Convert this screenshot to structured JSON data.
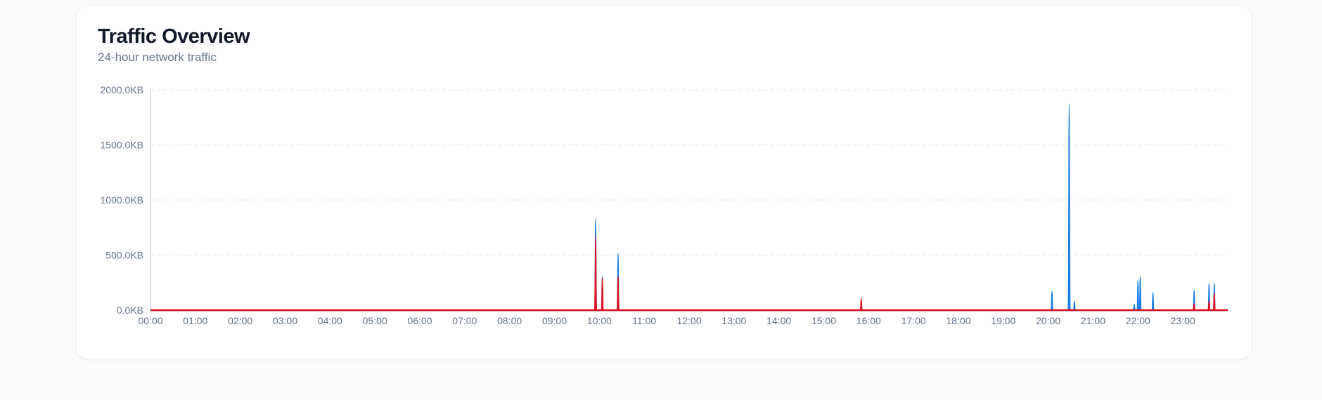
{
  "card": {
    "title": "Traffic Overview",
    "subtitle": "24-hour network traffic"
  },
  "chart_data": {
    "type": "area",
    "title": "Traffic Overview",
    "subtitle": "24-hour network traffic",
    "xlabel": "",
    "ylabel": "",
    "x_domain": [
      "00:00",
      "24:00"
    ],
    "ylim": [
      0,
      2000
    ],
    "y_unit": "KB",
    "y_ticks": [
      0,
      500,
      1000,
      1500,
      2000
    ],
    "y_tick_labels": [
      "0.0KB",
      "500.0KB",
      "1000.0KB",
      "1500.0KB",
      "2000.0KB"
    ],
    "x_tick_labels": [
      "00:00",
      "01:00",
      "02:00",
      "03:00",
      "04:00",
      "05:00",
      "06:00",
      "07:00",
      "08:00",
      "09:00",
      "10:00",
      "11:00",
      "12:00",
      "13:00",
      "14:00",
      "15:00",
      "16:00",
      "17:00",
      "18:00",
      "19:00",
      "20:00",
      "21:00",
      "22:00",
      "23:00"
    ],
    "grid": true,
    "legend": "none",
    "colors": {
      "series_blue": "#1a7fe8",
      "series_red": "#e0101e",
      "grid": "#e5e7eb",
      "axis": "#cbd5e1"
    },
    "series": [
      {
        "color": "#1a7fe8",
        "peaks": [
          {
            "time": "09:55",
            "value": 830
          },
          {
            "time": "10:04",
            "value": 310
          },
          {
            "time": "10:25",
            "value": 520
          },
          {
            "time": "15:50",
            "value": 80
          },
          {
            "time": "20:05",
            "value": 175
          },
          {
            "time": "20:28",
            "value": 1870
          },
          {
            "time": "20:35",
            "value": 80
          },
          {
            "time": "21:55",
            "value": 55
          },
          {
            "time": "22:00",
            "value": 270
          },
          {
            "time": "22:03",
            "value": 300
          },
          {
            "time": "22:20",
            "value": 165
          },
          {
            "time": "23:15",
            "value": 180
          },
          {
            "time": "23:35",
            "value": 240
          },
          {
            "time": "23:42",
            "value": 245
          }
        ]
      },
      {
        "color": "#e0101e",
        "peaks": [
          {
            "time": "09:55",
            "value": 670
          },
          {
            "time": "10:04",
            "value": 295
          },
          {
            "time": "10:25",
            "value": 310
          },
          {
            "time": "15:50",
            "value": 110
          },
          {
            "time": "20:28",
            "value": 10
          },
          {
            "time": "23:15",
            "value": 60
          },
          {
            "time": "23:35",
            "value": 90
          },
          {
            "time": "23:42",
            "value": 160
          }
        ]
      }
    ]
  }
}
